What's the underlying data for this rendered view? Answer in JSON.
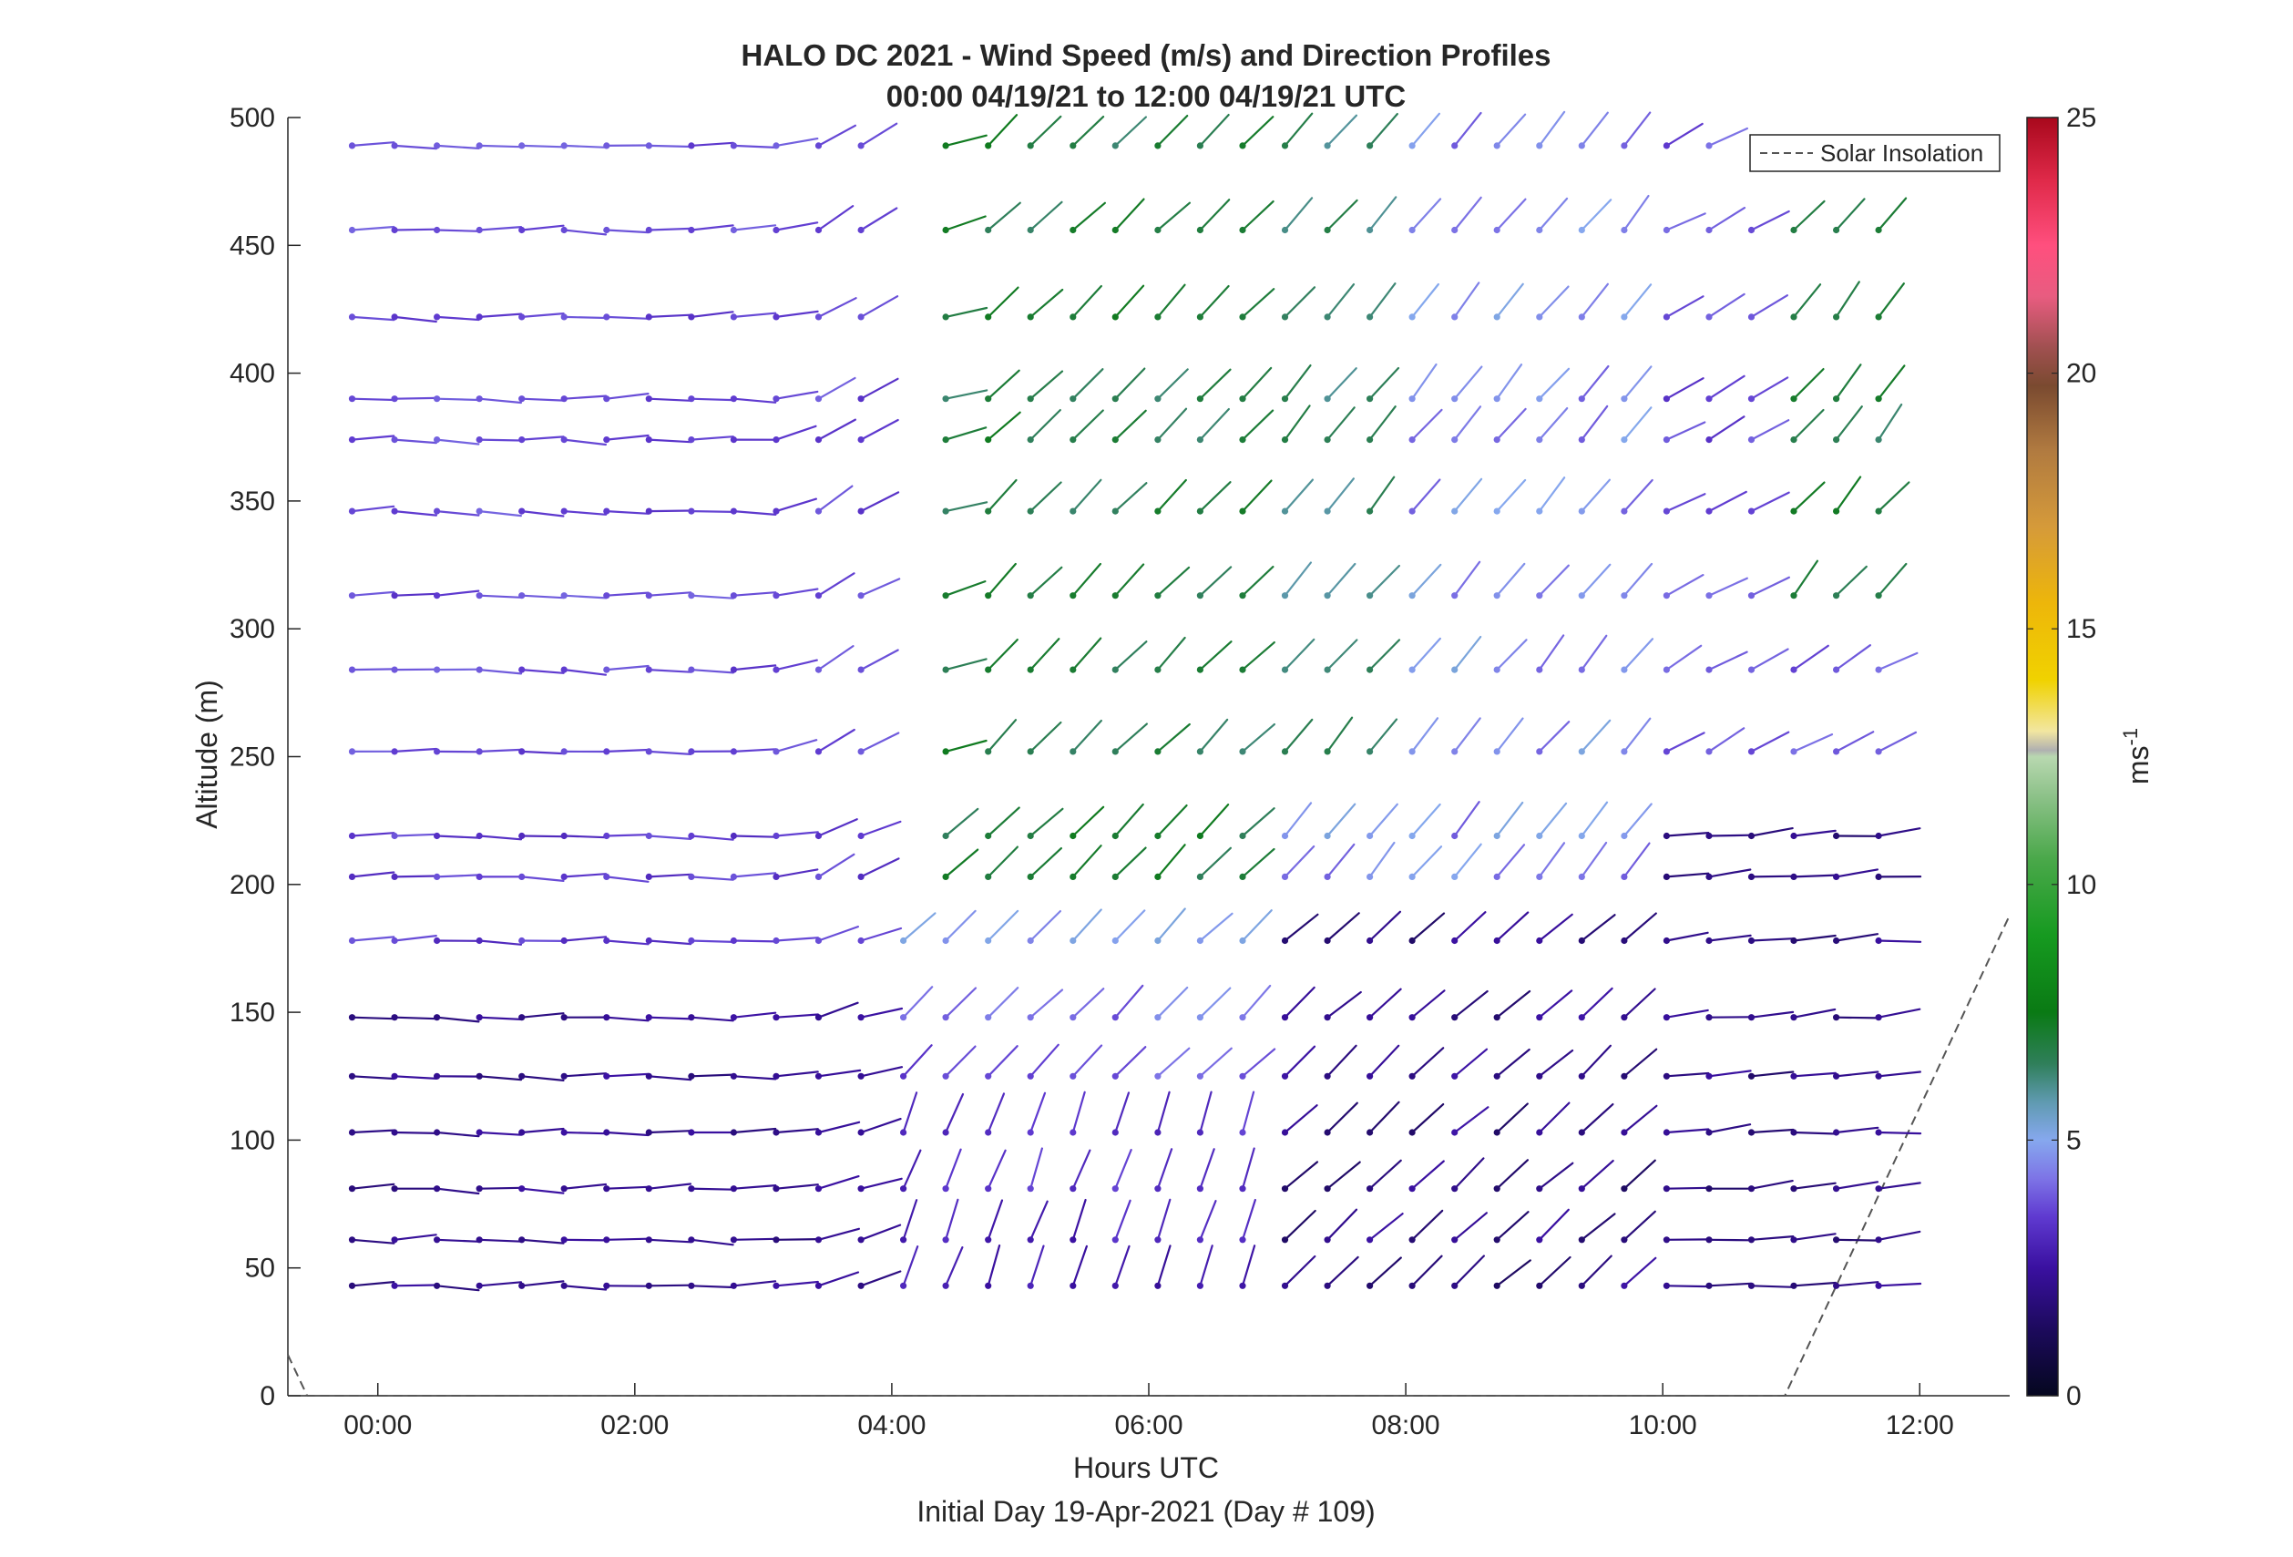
{
  "chart_data": {
    "type": "wind_barb_profile",
    "title": "HALO DC 2021 - Wind Speed (m/s) and Direction Profiles",
    "subtitle": "00:00 04/19/21 to 12:00 04/19/21  UTC",
    "xlabel": "Hours UTC",
    "xlabel2": "Initial Day 19-Apr-2021 (Day # 109)",
    "ylabel": "Altitude (m)",
    "xlim": [
      -0.7,
      12.7
    ],
    "ylim": [
      0,
      500
    ],
    "x_ticks": [
      0,
      2,
      4,
      6,
      8,
      10,
      12
    ],
    "x_tick_labels": [
      "00:00",
      "02:00",
      "04:00",
      "06:00",
      "08:00",
      "10:00",
      "12:00"
    ],
    "y_ticks": [
      0,
      50,
      100,
      150,
      200,
      250,
      300,
      350,
      400,
      450,
      500
    ],
    "y_tick_labels": [
      "0",
      "50",
      "100",
      "150",
      "200",
      "250",
      "300",
      "350",
      "400",
      "450",
      "500"
    ],
    "colorbar": {
      "label": "ms",
      "label_superscript": "-1",
      "range": [
        0,
        25
      ],
      "ticks": [
        0,
        5,
        10,
        15,
        20,
        25
      ],
      "tick_labels": [
        "0",
        "5",
        "10",
        "15",
        "20",
        "25"
      ]
    },
    "legend": {
      "entries": [
        "Solar Insolation"
      ],
      "location": "top-right"
    },
    "solar_insolation": {
      "style": "dashed",
      "x": [
        -0.7,
        -0.55,
        10.95,
        12.7
      ],
      "y": [
        16,
        0,
        0,
        188
      ]
    },
    "times": [
      -0.2,
      0.13,
      0.46,
      0.79,
      1.12,
      1.45,
      1.78,
      2.11,
      2.44,
      2.77,
      3.1,
      3.43,
      3.76,
      4.09,
      4.42,
      4.75,
      5.08,
      5.41,
      5.74,
      6.07,
      6.4,
      6.73,
      7.06,
      7.39,
      7.72,
      8.05,
      8.38,
      8.71,
      9.04,
      9.37,
      9.7,
      10.03,
      10.36,
      10.69,
      11.02,
      11.35,
      11.68
    ],
    "altitudes": [
      43,
      61,
      81,
      103,
      125,
      148,
      178,
      203,
      219,
      252,
      284,
      313,
      346,
      374,
      390,
      422,
      456,
      489
    ],
    "profiles": [
      {
        "phase": "night_westerly",
        "t_from": -0.2,
        "t_to": 3.9,
        "speed_m_s": 3.5,
        "direction_deg": 270
      },
      {
        "phase": "morning_southwesterly",
        "t_from": 4.1,
        "t_to": 6.8,
        "speed_m_s": 6.8,
        "direction_deg": 225
      },
      {
        "phase": "mid_morning_southwesterly",
        "t_from": 6.8,
        "t_to": 9.8,
        "speed_m_s": 4.6,
        "direction_deg": 220
      },
      {
        "phase": "late_morning_westerly",
        "t_from": 9.8,
        "t_to": 11.7,
        "speed_m_s": 3.8,
        "direction_deg": 265
      }
    ]
  }
}
